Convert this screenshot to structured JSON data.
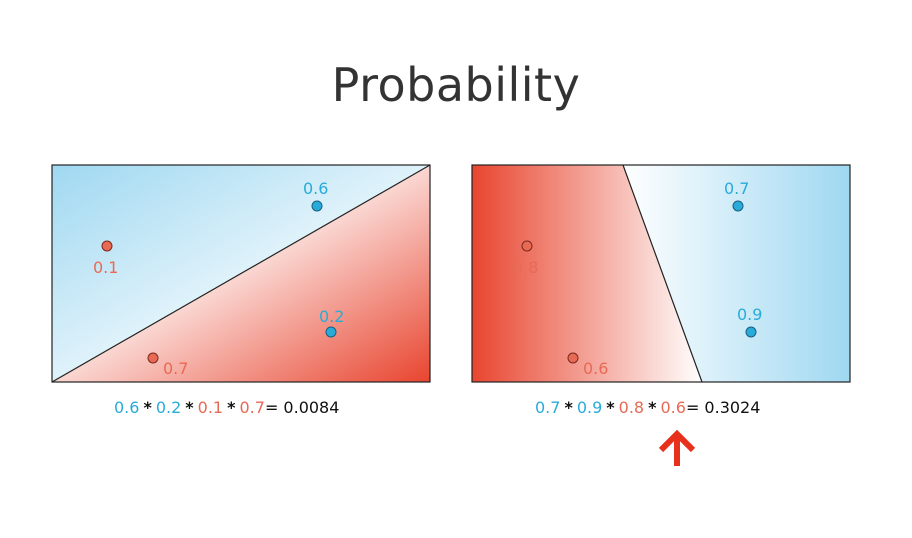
{
  "title": "Probability",
  "colors": {
    "blue": "#29abd9",
    "red": "#e86a55",
    "arrow": "#e8311d"
  },
  "left_panel": {
    "points": [
      {
        "label": "0.6",
        "class": "blue"
      },
      {
        "label": "0.1",
        "class": "red"
      },
      {
        "label": "0.2",
        "class": "blue"
      },
      {
        "label": "0.7",
        "class": "red"
      }
    ],
    "formula": {
      "terms": [
        "0.6",
        "0.2",
        "0.1",
        "0.7"
      ],
      "op": "*",
      "result": "= 0.0084"
    }
  },
  "right_panel": {
    "points": [
      {
        "label": "0.7",
        "class": "blue"
      },
      {
        "label": "0.8",
        "class": "red"
      },
      {
        "label": "0.9",
        "class": "blue"
      },
      {
        "label": "0.6",
        "class": "red"
      }
    ],
    "formula": {
      "terms": [
        "0.7",
        "0.9",
        "0.8",
        "0.6"
      ],
      "op": "*",
      "result": "= 0.3024"
    }
  },
  "arrow_icon": "up-arrow-icon"
}
